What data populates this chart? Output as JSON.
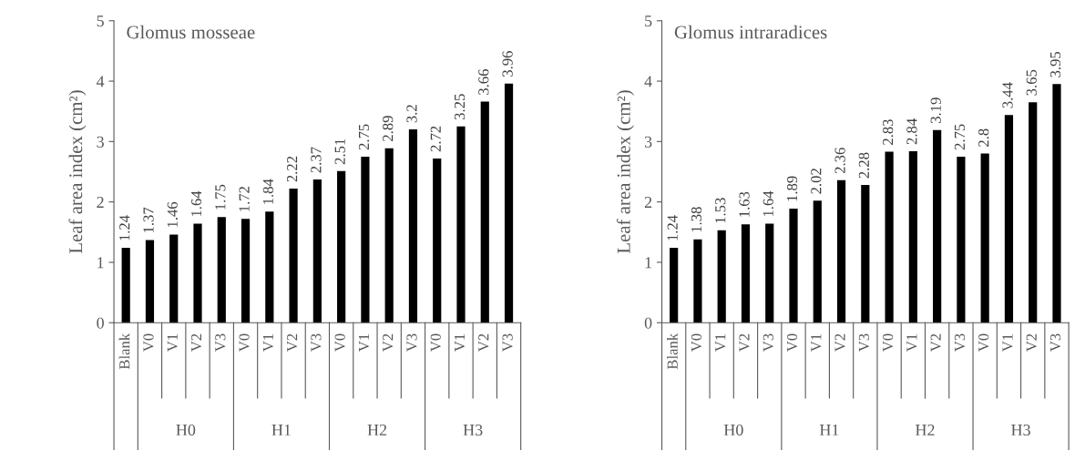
{
  "chart_data": [
    {
      "type": "bar",
      "title": "Glomus mosseae",
      "ylabel": "Leaf area index (cm²)",
      "categories": [
        "Blank",
        "V0",
        "V1",
        "V2",
        "V3",
        "V0",
        "V1",
        "V2",
        "V3",
        "V0",
        "V1",
        "V2",
        "V3",
        "V0",
        "V1",
        "V2",
        "V3"
      ],
      "values": [
        1.24,
        1.37,
        1.46,
        1.64,
        1.75,
        1.72,
        1.84,
        2.22,
        2.37,
        2.51,
        2.75,
        2.89,
        3.2,
        2.72,
        3.25,
        3.66,
        3.96
      ],
      "color": "#000000",
      "ylim": [
        0,
        5
      ],
      "yticks": [
        0,
        1,
        2,
        3,
        4,
        5
      ],
      "data_labels": true,
      "grid": false,
      "legend": false,
      "annotations": [
        "H0",
        "H1",
        "H2",
        "H3"
      ]
    },
    {
      "type": "bar",
      "title": "Glomus intraradices",
      "ylabel": "Leaf area index (cm²)",
      "categories": [
        "Blank",
        "V0",
        "V1",
        "V2",
        "V3",
        "V0",
        "V1",
        "V2",
        "V3",
        "V0",
        "V1",
        "V2",
        "V3",
        "V0",
        "V1",
        "V2",
        "V3"
      ],
      "values": [
        1.24,
        1.38,
        1.53,
        1.63,
        1.64,
        1.89,
        2.02,
        2.36,
        2.28,
        2.83,
        2.84,
        3.19,
        2.75,
        2.8,
        3.44,
        3.65,
        3.95
      ],
      "color": "#000000",
      "ylim": [
        0,
        5
      ],
      "yticks": [
        0,
        1,
        2,
        3,
        4,
        5
      ],
      "data_labels": true,
      "grid": false,
      "legend": false,
      "annotations": [
        "H0",
        "H1",
        "H2",
        "H3"
      ]
    }
  ]
}
